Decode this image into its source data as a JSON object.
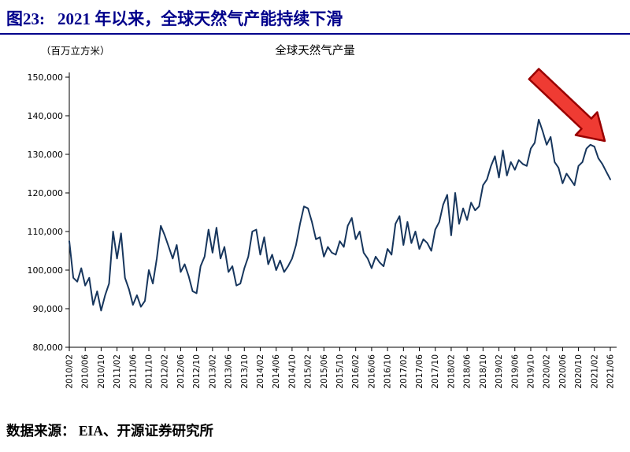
{
  "header": {
    "figure_label": "图23:",
    "title": "2021 年以来，全球天然气产能持续下滑",
    "accent_color": "#00008B"
  },
  "footer": {
    "source_label": "数据来源：",
    "source_text": "EIA、开源证券研究所"
  },
  "chart_data": {
    "type": "line",
    "title": "全球天然气产量",
    "unit": "（百万立方米）",
    "ylim": [
      80000,
      150000
    ],
    "y_tick_step": 10000,
    "grid": false,
    "line_color": "#17365D",
    "x_tick_interval": 4,
    "x_start": "2010/02",
    "frequency": "monthly",
    "x_tick_labels": [
      "2010/02",
      "2010/06",
      "2010/10",
      "2011/02",
      "2011/06",
      "2011/10",
      "2012/02",
      "2012/06",
      "2012/10",
      "2013/02",
      "2013/06",
      "2013/10",
      "2014/02",
      "2014/06",
      "2014/10",
      "2015/02",
      "2015/06",
      "2015/10",
      "2016/02",
      "2016/06",
      "2016/10",
      "2017/02",
      "2017/06",
      "2017/10",
      "2018/02",
      "2018/06",
      "2018/10",
      "2019/02",
      "2019/06",
      "2019/10",
      "2020/02",
      "2020/06",
      "2020/10",
      "2021/02",
      "2021/06"
    ],
    "values": [
      107500,
      98000,
      97000,
      100500,
      96000,
      98000,
      91000,
      94500,
      89500,
      93500,
      96500,
      110000,
      103000,
      109500,
      98000,
      95000,
      91000,
      93500,
      90500,
      92000,
      100000,
      96500,
      103000,
      111500,
      109000,
      106000,
      103000,
      106500,
      99500,
      101500,
      98500,
      94500,
      94000,
      101000,
      103500,
      110500,
      104500,
      111000,
      103000,
      106000,
      99500,
      101000,
      96000,
      96500,
      100500,
      103500,
      110000,
      110500,
      104000,
      108500,
      101500,
      104000,
      100000,
      102500,
      99500,
      101000,
      103000,
      106500,
      112000,
      116500,
      116000,
      112500,
      108000,
      108500,
      103500,
      106000,
      104500,
      104000,
      107500,
      106000,
      111500,
      113500,
      108000,
      110000,
      104500,
      103000,
      100500,
      103500,
      102000,
      101000,
      105500,
      104000,
      112000,
      114000,
      106500,
      112500,
      107000,
      110000,
      105500,
      108000,
      107000,
      105000,
      110500,
      112500,
      117000,
      119500,
      109000,
      120000,
      112000,
      116000,
      113000,
      117500,
      115500,
      116500,
      122000,
      123500,
      127000,
      129500,
      124000,
      131000,
      124500,
      128000,
      126000,
      128500,
      127500,
      127000,
      131500,
      133000,
      139000,
      136000,
      132500,
      134500,
      128000,
      126500,
      122500,
      125000,
      123500,
      122000,
      127000,
      128000,
      131500,
      132500,
      132000,
      129000,
      127500,
      125500,
      123500
    ],
    "annotation": {
      "type": "arrow-down-right",
      "fill": "#EF3B33",
      "stroke": "#990000"
    }
  }
}
